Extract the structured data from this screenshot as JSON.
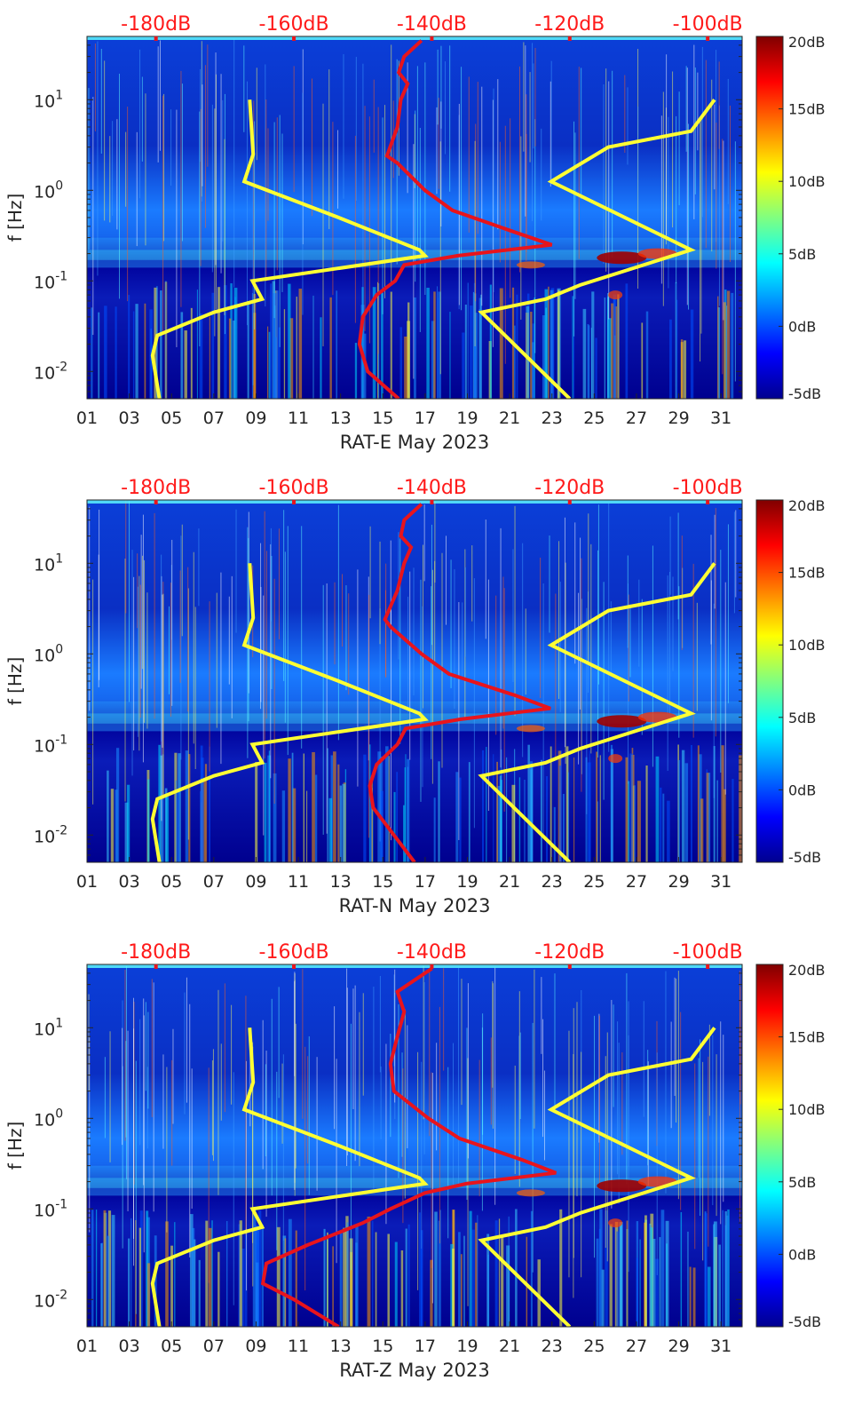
{
  "colors": {
    "background_low": "#00008f",
    "noise_curve": "#ffff33",
    "psd_curve": "#e8141c",
    "top_scale_text": "#ff1a1a",
    "axis": "#262626"
  },
  "colormap": [
    "#00008f",
    "#0000ff",
    "#0080ff",
    "#00ffff",
    "#80ff80",
    "#ffff00",
    "#ff8000",
    "#ff0000",
    "#800000"
  ],
  "chart_data": [
    {
      "type": "heatmap",
      "xlabel": "RAT-E May 2023",
      "ylabel": "f [Hz]",
      "x_ticks": [
        "01",
        "03",
        "05",
        "07",
        "09",
        "11",
        "13",
        "15",
        "17",
        "19",
        "21",
        "23",
        "25",
        "27",
        "29",
        "31"
      ],
      "x_range_days": [
        1,
        32
      ],
      "y_scale": "log",
      "y_range_hz": [
        0.005,
        50
      ],
      "y_ticks": [
        {
          "value": 0.01,
          "label": "10",
          "exp": "-2"
        },
        {
          "value": 0.1,
          "label": "10",
          "exp": "-1"
        },
        {
          "value": 1,
          "label": "10",
          "exp": "0"
        },
        {
          "value": 10,
          "label": "10",
          "exp": "1"
        }
      ],
      "top_axis_labels": [
        "-180dB",
        "-160dB",
        "-140dB",
        "-120dB",
        "-100dB"
      ],
      "top_axis_values_db": [
        -180,
        -160,
        -140,
        -120,
        -100
      ],
      "colorbar": {
        "labels": [
          "20dB",
          "15dB",
          "10dB",
          "5dB",
          "0dB",
          "-5dB"
        ],
        "values": [
          20,
          15,
          10,
          5,
          0,
          -5
        ],
        "range": [
          -5,
          20
        ]
      },
      "noise_model_low": [
        [
          0.005,
          -179.5
        ],
        [
          0.015,
          -180.5
        ],
        [
          0.025,
          -179.8
        ],
        [
          0.045,
          -171.6
        ],
        [
          0.063,
          -164.6
        ],
        [
          0.1,
          -166
        ],
        [
          0.19,
          -141
        ],
        [
          0.22,
          -141.8
        ],
        [
          0.5,
          -153.5
        ],
        [
          1.25,
          -167.2
        ],
        [
          2.5,
          -165.9
        ],
        [
          10,
          -166.4
        ]
      ],
      "noise_model_high": [
        [
          0.005,
          -120
        ],
        [
          0.045,
          -132.8
        ],
        [
          0.063,
          -123.5
        ],
        [
          0.09,
          -118.5
        ],
        [
          0.22,
          -102.4
        ],
        [
          1.25,
          -122.7
        ],
        [
          3,
          -114.4
        ],
        [
          4.5,
          -102.4
        ],
        [
          10,
          -99
        ]
      ],
      "psd_curve": [
        [
          0.005,
          -144.8
        ],
        [
          0.01,
          -149.3
        ],
        [
          0.02,
          -150.5
        ],
        [
          0.04,
          -150
        ],
        [
          0.07,
          -148
        ],
        [
          0.1,
          -145.3
        ],
        [
          0.15,
          -144
        ],
        [
          0.19,
          -136.2
        ],
        [
          0.25,
          -122.6
        ],
        [
          0.35,
          -128.2
        ],
        [
          0.6,
          -137
        ],
        [
          1,
          -141
        ],
        [
          2,
          -145
        ],
        [
          2.4,
          -146.5
        ],
        [
          5,
          -145
        ],
        [
          10,
          -144.5
        ],
        [
          15,
          -143.5
        ],
        [
          20,
          -144.8
        ],
        [
          30,
          -144
        ],
        [
          45,
          -141.5
        ]
      ]
    },
    {
      "type": "heatmap",
      "xlabel": "RAT-N May 2023",
      "ylabel": "f [Hz]",
      "x_ticks": [
        "01",
        "03",
        "05",
        "07",
        "09",
        "11",
        "13",
        "15",
        "17",
        "19",
        "21",
        "23",
        "25",
        "27",
        "29",
        "31"
      ],
      "x_range_days": [
        1,
        32
      ],
      "y_scale": "log",
      "y_range_hz": [
        0.005,
        50
      ],
      "y_ticks": [
        {
          "value": 0.01,
          "label": "10",
          "exp": "-2"
        },
        {
          "value": 0.1,
          "label": "10",
          "exp": "-1"
        },
        {
          "value": 1,
          "label": "10",
          "exp": "0"
        },
        {
          "value": 10,
          "label": "10",
          "exp": "1"
        }
      ],
      "top_axis_labels": [
        "-180dB",
        "-160dB",
        "-140dB",
        "-120dB",
        "-100dB"
      ],
      "top_axis_values_db": [
        -180,
        -160,
        -140,
        -120,
        -100
      ],
      "colorbar": {
        "labels": [
          "20dB",
          "15dB",
          "10dB",
          "5dB",
          "0dB",
          "-5dB"
        ],
        "values": [
          20,
          15,
          10,
          5,
          0,
          -5
        ],
        "range": [
          -5,
          20
        ]
      },
      "noise_model_low": [
        [
          0.005,
          -179.5
        ],
        [
          0.015,
          -180.5
        ],
        [
          0.025,
          -179.8
        ],
        [
          0.045,
          -171.6
        ],
        [
          0.063,
          -164.6
        ],
        [
          0.1,
          -166
        ],
        [
          0.19,
          -141
        ],
        [
          0.22,
          -141.8
        ],
        [
          0.5,
          -153.5
        ],
        [
          1.25,
          -167.2
        ],
        [
          2.5,
          -165.9
        ],
        [
          10,
          -166.4
        ]
      ],
      "noise_model_high": [
        [
          0.005,
          -120
        ],
        [
          0.045,
          -132.8
        ],
        [
          0.063,
          -123.5
        ],
        [
          0.09,
          -118.5
        ],
        [
          0.22,
          -102.4
        ],
        [
          1.25,
          -122.7
        ],
        [
          3,
          -114.4
        ],
        [
          4.5,
          -102.4
        ],
        [
          10,
          -99
        ]
      ],
      "psd_curve": [
        [
          0.005,
          -142.5
        ],
        [
          0.01,
          -145.5
        ],
        [
          0.02,
          -148.5
        ],
        [
          0.035,
          -149
        ],
        [
          0.06,
          -148
        ],
        [
          0.1,
          -145
        ],
        [
          0.15,
          -143.8
        ],
        [
          0.19,
          -135.8
        ],
        [
          0.25,
          -122.8
        ],
        [
          0.35,
          -128
        ],
        [
          0.6,
          -137.5
        ],
        [
          1,
          -141.5
        ],
        [
          2,
          -146
        ],
        [
          2.4,
          -146.8
        ],
        [
          5,
          -145
        ],
        [
          10,
          -144
        ],
        [
          15,
          -143
        ],
        [
          20,
          -144.5
        ],
        [
          30,
          -144
        ],
        [
          45,
          -141.5
        ]
      ]
    },
    {
      "type": "heatmap",
      "xlabel": "RAT-Z May 2023",
      "ylabel": "f [Hz]",
      "x_ticks": [
        "01",
        "03",
        "05",
        "07",
        "09",
        "11",
        "13",
        "15",
        "17",
        "19",
        "21",
        "23",
        "25",
        "27",
        "29",
        "31"
      ],
      "x_range_days": [
        1,
        32
      ],
      "y_scale": "log",
      "y_range_hz": [
        0.005,
        50
      ],
      "y_ticks": [
        {
          "value": 0.01,
          "label": "10",
          "exp": "-2"
        },
        {
          "value": 0.1,
          "label": "10",
          "exp": "-1"
        },
        {
          "value": 1,
          "label": "10",
          "exp": "0"
        },
        {
          "value": 10,
          "label": "10",
          "exp": "1"
        }
      ],
      "top_axis_labels": [
        "-180dB",
        "-160dB",
        "-140dB",
        "-120dB",
        "-100dB"
      ],
      "top_axis_values_db": [
        -180,
        -160,
        -140,
        -120,
        -100
      ],
      "colorbar": {
        "labels": [
          "20dB",
          "15dB",
          "10dB",
          "5dB",
          "0dB",
          "-5dB"
        ],
        "values": [
          20,
          15,
          10,
          5,
          0,
          -5
        ],
        "range": [
          -5,
          20
        ]
      },
      "noise_model_low": [
        [
          0.005,
          -179.5
        ],
        [
          0.015,
          -180.5
        ],
        [
          0.025,
          -179.8
        ],
        [
          0.045,
          -171.6
        ],
        [
          0.063,
          -164.6
        ],
        [
          0.1,
          -166
        ],
        [
          0.19,
          -141
        ],
        [
          0.22,
          -141.8
        ],
        [
          0.5,
          -153.5
        ],
        [
          1.25,
          -167.2
        ],
        [
          2.5,
          -165.9
        ],
        [
          10,
          -166.4
        ]
      ],
      "noise_model_high": [
        [
          0.005,
          -120
        ],
        [
          0.045,
          -132.8
        ],
        [
          0.063,
          -123.5
        ],
        [
          0.09,
          -118.5
        ],
        [
          0.22,
          -102.4
        ],
        [
          1.25,
          -122.7
        ],
        [
          3,
          -114.4
        ],
        [
          4.5,
          -102.4
        ],
        [
          10,
          -99
        ]
      ],
      "psd_curve": [
        [
          0.005,
          -153.5
        ],
        [
          0.01,
          -160
        ],
        [
          0.015,
          -164.5
        ],
        [
          0.025,
          -164
        ],
        [
          0.04,
          -158
        ],
        [
          0.07,
          -150
        ],
        [
          0.1,
          -146
        ],
        [
          0.15,
          -141
        ],
        [
          0.19,
          -135
        ],
        [
          0.25,
          -122
        ],
        [
          0.35,
          -127
        ],
        [
          0.6,
          -136
        ],
        [
          1,
          -140.5
        ],
        [
          2,
          -145.5
        ],
        [
          4,
          -146
        ],
        [
          8,
          -145
        ],
        [
          15,
          -144
        ],
        [
          25,
          -145
        ],
        [
          45,
          -140
        ]
      ]
    }
  ]
}
